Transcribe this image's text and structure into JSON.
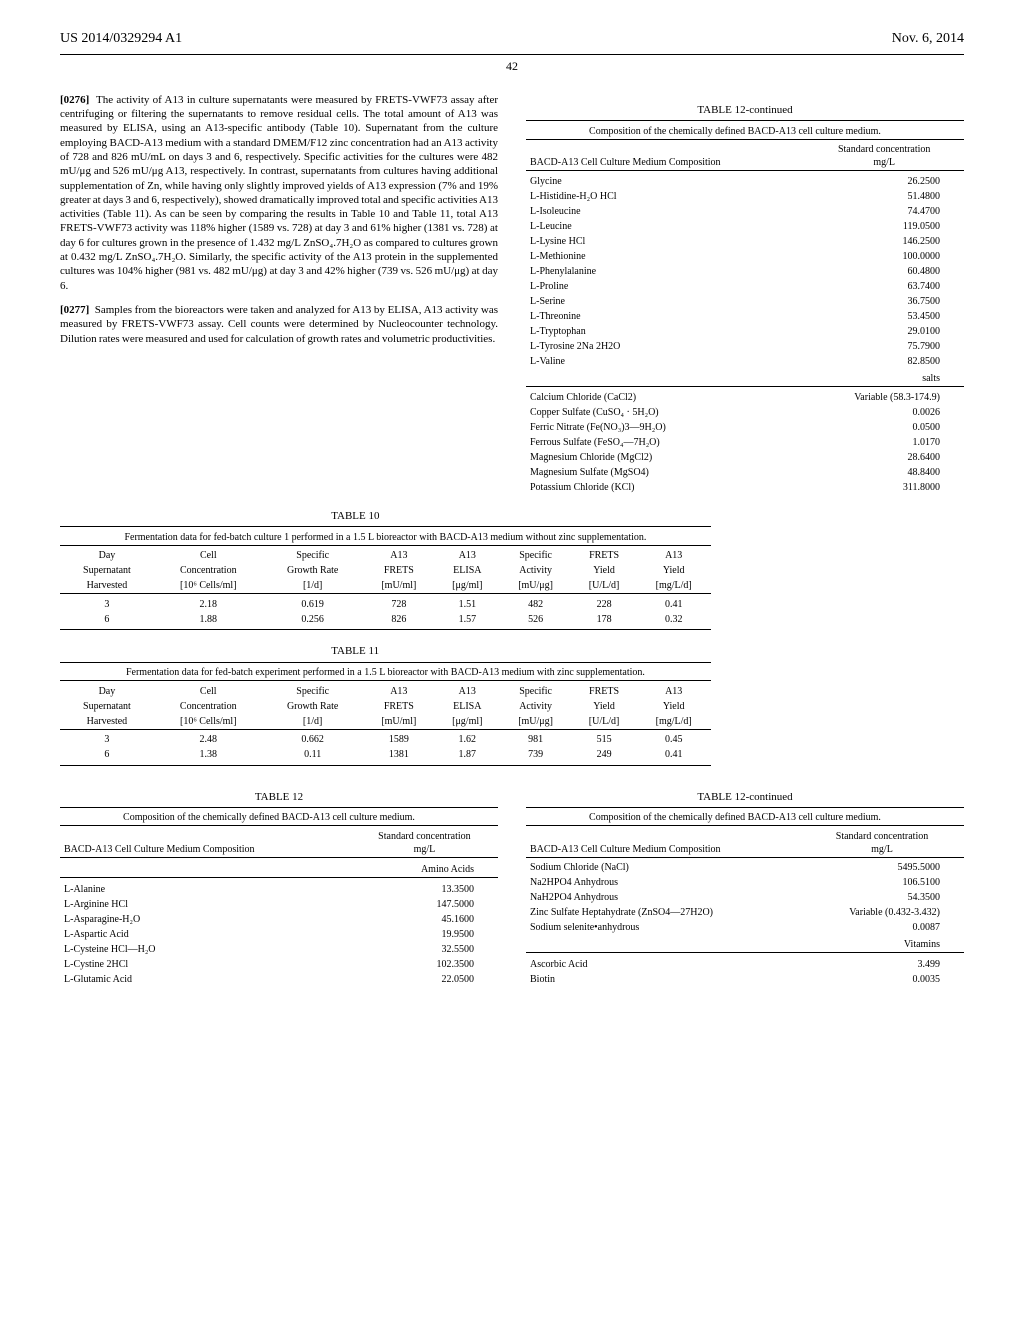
{
  "header": {
    "left": "US 2014/0329294 A1",
    "right": "Nov. 6, 2014",
    "page": "42"
  },
  "paragraphs": {
    "p1": {
      "num": "[0276]",
      "text": "The activity of A13 in culture supernatants were measured by FRETS-VWF73 assay after centrifuging or filtering the supernatants to remove residual cells. The total amount of A13 was measured by ELISA, using an A13-specific antibody (Table 10). Supernatant from the culture employing BACD-A13 medium with a standard DMEM/F12 zinc concentration had an A13 activity of 728 and 826 mU/mL on days 3 and 6, respectively. Specific activities for the cultures were 482 mU/μg and 526 mU/μg A13, respectively. In contrast, supernatants from cultures having additional supplementation of Zn, while having only slightly improved yields of A13 expression (7% and 19% greater at days 3 and 6, respectively), showed dramatically improved total and specific activities A13 activities (Table 11). As can be seen by comparing the results in Table 10 and Table 11, total A13 FRETS-VWF73 activity was 118% higher (1589 vs. 728) at day 3 and 61% higher (1381 vs. 728) at day 6 for cultures grown in the presence of 1.432 mg/L ZnSO₄.7H₂O as compared to cultures grown at 0.432 mg/L ZnSO₄.7H₂O. Similarly, the specific activity of the A13 protein in the supplemented cultures was 104% higher (981 vs. 482 mU/μg) at day 3 and 42% higher (739 vs. 526 mU/μg) at day 6."
    },
    "p2": {
      "num": "[0277]",
      "text": "Samples from the bioreactors were taken and analyzed for A13 by ELISA, A13 activity was measured by FRETS-VWF73 assay. Cell counts were determined by Nucleocounter technology. Dilution rates were measured and used for calculation of growth rates and volumetric productivities."
    }
  },
  "table10": {
    "label": "TABLE 10",
    "caption": "Fermentation data for fed-batch culture 1 performed in a 1.5 L bioreactor with BACD-A13 medium without zinc supplementation.",
    "headers": [
      [
        "Day",
        "Cell",
        "Specific",
        "A13",
        "A13",
        "Specific",
        "FRETS",
        "A13"
      ],
      [
        "Supernatant",
        "Concentration",
        "Growth Rate",
        "FRETS",
        "ELISA",
        "Activity",
        "Yield",
        "Yield"
      ],
      [
        "Harvested",
        "[10⁶ Cells/ml]",
        "[1/d]",
        "[mU/ml]",
        "[μg/ml]",
        "[mU/μg]",
        "[U/L/d]",
        "[mg/L/d]"
      ]
    ],
    "rows": [
      [
        "3",
        "2.18",
        "0.619",
        "728",
        "1.51",
        "482",
        "228",
        "0.41"
      ],
      [
        "6",
        "1.88",
        "0.256",
        "826",
        "1.57",
        "526",
        "178",
        "0.32"
      ]
    ]
  },
  "table11": {
    "label": "TABLE 11",
    "caption": "Fermentation data for fed-batch experiment performed in a 1.5 L bioreactor with BACD-A13 medium with zinc supplementation.",
    "headers": [
      [
        "Day",
        "Cell",
        "Specific",
        "A13",
        "A13",
        "Specific",
        "FRETS",
        "A13"
      ],
      [
        "Supernatant",
        "Concentration",
        "Growth Rate",
        "FRETS",
        "ELISA",
        "Activity",
        "Yield",
        "Yield"
      ],
      [
        "Harvested",
        "[10⁶ Cells/ml]",
        "[1/d]",
        "[mU/ml]",
        "[μg/ml]",
        "[mU/μg]",
        "[U/L/d]",
        "[mg/L/d]"
      ]
    ],
    "rows": [
      [
        "3",
        "2.48",
        "0.662",
        "1589",
        "1.62",
        "981",
        "515",
        "0.45"
      ],
      [
        "6",
        "1.38",
        "0.11",
        "1381",
        "1.87",
        "739",
        "249",
        "0.41"
      ]
    ]
  },
  "table12a": {
    "label": "TABLE 12-continued",
    "caption": "Composition of the chemically defined BACD-A13 cell culture medium.",
    "h1": "BACD-A13 Cell Culture Medium Composition",
    "h2a": "Standard concentration",
    "h2b": "mg/L",
    "rows": [
      [
        "Glycine",
        "26.2500"
      ],
      [
        "L-Histidine-H₂O HCl",
        "51.4800"
      ],
      [
        "L-Isoleucine",
        "74.4700"
      ],
      [
        "L-Leucine",
        "119.0500"
      ],
      [
        "L-Lysine HCl",
        "146.2500"
      ],
      [
        "L-Methionine",
        "100.0000"
      ],
      [
        "L-Phenylalanine",
        "60.4800"
      ],
      [
        "L-Proline",
        "63.7400"
      ],
      [
        "L-Serine",
        "36.7500"
      ],
      [
        "L-Threonine",
        "53.4500"
      ],
      [
        "L-Tryptophan",
        "29.0100"
      ],
      [
        "L-Tyrosine 2Na 2H2O",
        "75.7900"
      ],
      [
        "L-Valine",
        "82.8500"
      ]
    ],
    "section2": "salts",
    "rows2": [
      [
        "Calcium Chloride (CaCl2)",
        "Variable (58.3-174.9)"
      ],
      [
        "Copper Sulfate (CuSO₄ · 5H₂O)",
        "0.0026"
      ],
      [
        "Ferric Nitrate (Fe(NO₃)3—9H₂O)",
        "0.0500"
      ],
      [
        "Ferrous Sulfate (FeSO₄—7H₂O)",
        "1.0170"
      ],
      [
        "Magnesium Chloride (MgCl2)",
        "28.6400"
      ],
      [
        "Magnesium Sulfate (MgSO4)",
        "48.8400"
      ],
      [
        "Potassium Chloride (KCl)",
        "311.8000"
      ]
    ]
  },
  "table12b": {
    "label": "TABLE 12",
    "caption": "Composition of the chemically defined BACD-A13 cell culture medium.",
    "h1": "BACD-A13 Cell Culture Medium Composition",
    "h2a": "Standard concentration",
    "h2b": "mg/L",
    "section1": "Amino Acids",
    "rows": [
      [
        "L-Alanine",
        "13.3500"
      ],
      [
        "L-Arginine HCl",
        "147.5000"
      ],
      [
        "L-Asparagine-H₂O",
        "45.1600"
      ],
      [
        "L-Aspartic Acid",
        "19.9500"
      ],
      [
        "L-Cysteine HCl—H₂O",
        "32.5500"
      ],
      [
        "L-Cystine 2HCl",
        "102.3500"
      ],
      [
        "L-Glutamic Acid",
        "22.0500"
      ]
    ]
  },
  "table12c": {
    "label": "TABLE 12-continued",
    "caption": "Composition of the chemically defined BACD-A13 cell culture medium.",
    "h1": "BACD-A13 Cell Culture Medium Composition",
    "h2a": "Standard concentration",
    "h2b": "mg/L",
    "rows": [
      [
        "Sodium Chloride (NaCl)",
        "5495.5000"
      ],
      [
        "Na2HPO4 Anhydrous",
        "106.5100"
      ],
      [
        "NaH2PO4 Anhydrous",
        "54.3500"
      ],
      [
        "Zinc Sulfate Heptahydrate (ZnSO4—27H2O)",
        "Variable (0.432-3.432)"
      ],
      [
        "Sodium selenite•anhydrous",
        "0.0087"
      ]
    ],
    "section2": "Vitamins",
    "rows2": [
      [
        "Ascorbic Acid",
        "3.499"
      ],
      [
        "Biotin",
        "0.0035"
      ]
    ]
  }
}
